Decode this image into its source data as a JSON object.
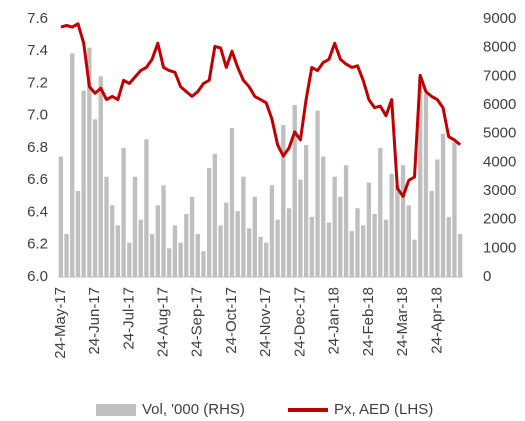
{
  "chart_data": {
    "type": "bar-line",
    "categories": [
      "24-May-17",
      null,
      null,
      null,
      null,
      null,
      "24-Jun-17",
      null,
      null,
      null,
      null,
      null,
      "24-Jul-17",
      null,
      null,
      null,
      null,
      null,
      "24-Aug-17",
      null,
      null,
      null,
      null,
      null,
      "24-Sep-17",
      null,
      null,
      null,
      null,
      null,
      "24-Oct-17",
      null,
      null,
      null,
      null,
      null,
      "24-Nov-17",
      null,
      null,
      null,
      null,
      null,
      "24-Dec-17",
      null,
      null,
      null,
      null,
      null,
      "24-Jan-18",
      null,
      null,
      null,
      null,
      null,
      "24-Feb-18",
      null,
      null,
      null,
      null,
      null,
      "24-Mar-18",
      null,
      null,
      null,
      null,
      null,
      "24-Apr-18",
      null,
      null,
      null,
      null
    ],
    "series": [
      {
        "name": "Vol, '000 (RHS)",
        "color": "#bfbfbf",
        "axis": "y2",
        "kind": "bar",
        "values": [
          4200,
          1500,
          7800,
          3000,
          6500,
          8000,
          5500,
          7000,
          3500,
          2500,
          1800,
          4500,
          1200,
          3500,
          2000,
          4800,
          1500,
          2500,
          3200,
          1000,
          1800,
          1200,
          2200,
          2800,
          1500,
          900,
          3800,
          4300,
          1800,
          2600,
          5200,
          2300,
          3500,
          1700,
          2800,
          1400,
          1200,
          3200,
          2000,
          5300,
          2400,
          6000,
          3400,
          4600,
          2100,
          5800,
          4200,
          1900,
          3500,
          2800,
          3900,
          1600,
          2400,
          1800,
          3300,
          2200,
          4500,
          2000,
          3600,
          3200,
          3900,
          2500,
          1300,
          7000,
          6400,
          3000,
          4100,
          5000,
          2100,
          4700,
          1500
        ]
      },
      {
        "name": "Px, AED (LHS)",
        "color": "#c00000",
        "axis": "y",
        "kind": "line",
        "values": [
          7.55,
          7.56,
          7.55,
          7.57,
          7.45,
          7.18,
          7.14,
          7.17,
          7.1,
          7.12,
          7.1,
          7.22,
          7.2,
          7.24,
          7.28,
          7.3,
          7.35,
          7.45,
          7.3,
          7.28,
          7.27,
          7.18,
          7.15,
          7.12,
          7.15,
          7.2,
          7.22,
          7.43,
          7.42,
          7.3,
          7.4,
          7.3,
          7.22,
          7.18,
          7.12,
          7.1,
          7.08,
          6.98,
          6.82,
          6.75,
          6.8,
          6.9,
          6.85,
          7.1,
          7.3,
          7.28,
          7.33,
          7.35,
          7.45,
          7.35,
          7.32,
          7.3,
          7.31,
          7.22,
          7.1,
          7.05,
          7.06,
          7.0,
          7.1,
          6.55,
          6.5,
          6.6,
          6.62,
          7.25,
          7.15,
          7.12,
          7.1,
          7.05,
          6.87,
          6.85,
          6.82
        ]
      }
    ],
    "ylim": [
      6.0,
      7.6
    ],
    "yticks": [
      {
        "value": 6,
        "label": "6.0"
      },
      6.2,
      6.4,
      6.6,
      6.8,
      {
        "value": 7,
        "label": "7.0"
      },
      7.2,
      7.4,
      7.6
    ],
    "y2lim": [
      0,
      9000
    ],
    "y2ticks": [
      0,
      1000,
      2000,
      3000,
      4000,
      5000,
      6000,
      7000,
      8000,
      9000
    ],
    "legend": "bottom"
  }
}
